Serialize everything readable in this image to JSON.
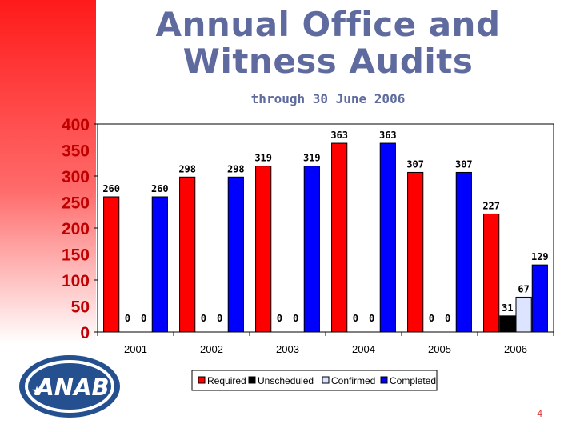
{
  "slide": {
    "title_line1": "Annual Office and",
    "title_line2": "Witness Audits",
    "subtitle": "through 30 June 2006",
    "page_number": "4",
    "logo_text": "ANAB"
  },
  "colors": {
    "title": "#5f6b9f",
    "sidebar_top": "#ff1a1a",
    "logo_blue": "#24508f"
  },
  "chart_data": {
    "type": "bar",
    "categories": [
      "2001",
      "2002",
      "2003",
      "2004",
      "2005",
      "2006"
    ],
    "series": [
      {
        "name": "Required",
        "color": "#ff0000",
        "values": [
          260,
          298,
          319,
          363,
          307,
          227
        ]
      },
      {
        "name": "Unscheduled",
        "color": "#000000",
        "values": [
          0,
          0,
          0,
          0,
          0,
          31
        ]
      },
      {
        "name": "Confirmed",
        "color": "#dde4ff",
        "values": [
          0,
          0,
          0,
          0,
          0,
          67
        ]
      },
      {
        "name": "Completed",
        "color": "#0000ff",
        "values": [
          260,
          298,
          319,
          363,
          307,
          129
        ]
      }
    ],
    "ylim": [
      0,
      400
    ],
    "yticks": [
      "0",
      "50",
      "100",
      "150",
      "200",
      "250",
      "300",
      "350",
      "400"
    ],
    "legend_position": "bottom",
    "grid": false
  }
}
